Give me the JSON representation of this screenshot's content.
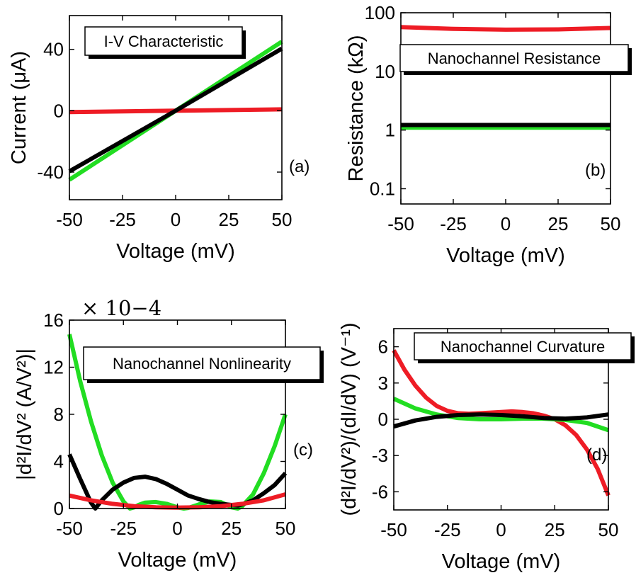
{
  "colors": {
    "red": "#ee1c25",
    "green": "#22dd22",
    "black": "#000000"
  },
  "chart_data": [
    {
      "id": "a",
      "type": "line",
      "title": "I-V Characteristic",
      "panel_label": "(a)",
      "xlabel": "Voltage (mV)",
      "ylabel": "Current (μA)",
      "xlim": [
        -50,
        50
      ],
      "ylim": [
        -58,
        62
      ],
      "xticks": [
        -50,
        -25,
        0,
        25,
        50
      ],
      "yticks": [
        -40,
        0,
        40
      ],
      "ytick_labels": [
        "-40",
        "0",
        "40"
      ],
      "legend": "top-left",
      "series": [
        {
          "color": "green",
          "x": [
            -50,
            0,
            50
          ],
          "y": [
            -45,
            0,
            45
          ]
        },
        {
          "color": "red",
          "x": [
            -50,
            0,
            50
          ],
          "y": [
            -0.9,
            0,
            0.9
          ]
        },
        {
          "color": "black",
          "x": [
            -50,
            0,
            50
          ],
          "y": [
            -39.5,
            0,
            40.5
          ]
        }
      ]
    },
    {
      "id": "b",
      "type": "line",
      "title": "Nanochannel Resistance",
      "panel_label": "(b)",
      "xlabel": "Voltage (mV)",
      "ylabel": "Resistance (kΩ)",
      "yscale": "log",
      "xlim": [
        -50,
        50
      ],
      "ylim": [
        0.055,
        100
      ],
      "xticks": [
        -50,
        -25,
        0,
        25,
        50
      ],
      "yticks": [
        0.1,
        1,
        10,
        100
      ],
      "ytick_labels": [
        "0.1",
        "1",
        "10",
        "100"
      ],
      "legend": "top-left",
      "series": [
        {
          "color": "red",
          "x": [
            -50,
            -25,
            0,
            25,
            50
          ],
          "y": [
            57,
            53,
            51.5,
            52,
            55
          ]
        },
        {
          "color": "green",
          "x": [
            -50,
            0,
            50
          ],
          "y": [
            1.1,
            1.1,
            1.1
          ]
        },
        {
          "color": "black",
          "x": [
            -50,
            0,
            50
          ],
          "y": [
            1.22,
            1.22,
            1.22
          ]
        }
      ]
    },
    {
      "id": "c",
      "type": "line",
      "title": "Nanochannel Nonlinearity",
      "panel_label": "(c)",
      "xlabel": "Voltage (mV)",
      "ylabel": "|d²I/dV² (A/V²)|",
      "scale_factor": "× 10−4",
      "xlim": [
        -50,
        50
      ],
      "ylim": [
        0,
        16
      ],
      "xticks": [
        -50,
        -25,
        0,
        25,
        50
      ],
      "yticks": [
        0,
        4,
        8,
        12,
        16
      ],
      "ytick_labels": [
        "0",
        "4",
        "8",
        "12",
        "16"
      ],
      "legend": "top-right",
      "series": [
        {
          "color": "green",
          "x": [
            -50,
            -45,
            -40,
            -35,
            -30,
            -25,
            -22,
            -20,
            -18,
            -15,
            -10,
            -5,
            0,
            3,
            5,
            10,
            15,
            20,
            23,
            25,
            28,
            30,
            35,
            40,
            45,
            50
          ],
          "y": [
            14.8,
            10.8,
            7.4,
            4.5,
            2.2,
            0.6,
            0.0,
            0.1,
            0.3,
            0.5,
            0.55,
            0.4,
            0.1,
            0.0,
            0.05,
            0.35,
            0.6,
            0.55,
            0.3,
            0.1,
            0.0,
            0.2,
            1.2,
            3.0,
            5.3,
            8.0
          ]
        },
        {
          "color": "black",
          "x": [
            -50,
            -45,
            -40,
            -38,
            -35,
            -30,
            -25,
            -20,
            -15,
            -10,
            -5,
            0,
            5,
            10,
            15,
            20,
            25,
            28,
            30,
            35,
            40,
            45,
            50
          ],
          "y": [
            4.6,
            2.5,
            0.5,
            0.0,
            0.7,
            1.6,
            2.2,
            2.6,
            2.7,
            2.5,
            2.1,
            1.6,
            1.1,
            0.8,
            0.55,
            0.4,
            0.3,
            0.25,
            0.35,
            0.7,
            1.3,
            2.0,
            3.0
          ]
        },
        {
          "color": "red",
          "x": [
            -50,
            -40,
            -30,
            -20,
            -10,
            0,
            10,
            20,
            30,
            40,
            50
          ],
          "y": [
            1.1,
            0.7,
            0.4,
            0.2,
            0.1,
            0.08,
            0.1,
            0.2,
            0.4,
            0.7,
            1.2
          ]
        }
      ]
    },
    {
      "id": "d",
      "type": "line",
      "title": "Nanochannel Curvature",
      "panel_label": "(d)",
      "xlabel": "Voltage (mV)",
      "ylabel": "(d²I/dV²)/(dI/dV) (V⁻¹)",
      "xlim": [
        -50,
        50
      ],
      "ylim": [
        -7.5,
        7.5
      ],
      "xticks": [
        -50,
        -25,
        0,
        25,
        50
      ],
      "yticks": [
        -6,
        -3,
        0,
        3,
        6
      ],
      "ytick_labels": [
        "-6",
        "-3",
        "0",
        "3",
        "6"
      ],
      "legend": "top-right",
      "series": [
        {
          "color": "red",
          "x": [
            -50,
            -45,
            -40,
            -35,
            -30,
            -25,
            -20,
            -15,
            -10,
            -5,
            0,
            5,
            10,
            15,
            20,
            25,
            30,
            35,
            40,
            45,
            50
          ],
          "y": [
            5.7,
            4.1,
            2.8,
            1.8,
            1.1,
            0.7,
            0.5,
            0.45,
            0.5,
            0.55,
            0.6,
            0.65,
            0.6,
            0.5,
            0.3,
            0.0,
            -0.5,
            -1.3,
            -2.5,
            -4.1,
            -6.3
          ]
        },
        {
          "color": "green",
          "x": [
            -50,
            -40,
            -30,
            -20,
            -10,
            0,
            10,
            20,
            30,
            40,
            50
          ],
          "y": [
            1.7,
            0.9,
            0.4,
            0.1,
            0.0,
            0.0,
            0.05,
            0.05,
            -0.05,
            -0.3,
            -0.9
          ]
        },
        {
          "color": "black",
          "x": [
            -50,
            -40,
            -30,
            -20,
            -10,
            0,
            10,
            20,
            30,
            40,
            50
          ],
          "y": [
            -0.6,
            -0.1,
            0.2,
            0.35,
            0.4,
            0.35,
            0.25,
            0.1,
            0.05,
            0.15,
            0.4
          ]
        }
      ]
    }
  ]
}
